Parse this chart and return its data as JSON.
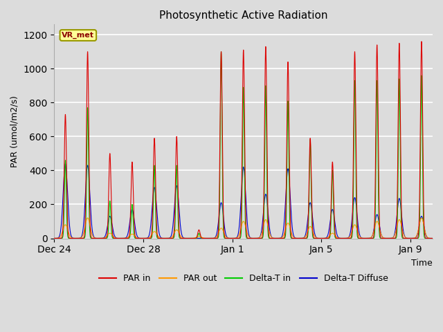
{
  "title": "Photosynthetic Active Radiation",
  "ylabel": "PAR (umol/m2/s)",
  "xlabel": "Time",
  "ylim": [
    0,
    1260
  ],
  "yticks": [
    0,
    200,
    400,
    600,
    800,
    1000,
    1200
  ],
  "bg_color": "#dcdcdc",
  "grid_color": "#f0f0f0",
  "legend_labels": [
    "PAR in",
    "PAR out",
    "Delta-T in",
    "Delta-T Diffuse"
  ],
  "legend_colors": [
    "#dd0000",
    "#ff9900",
    "#00cc00",
    "#0000cc"
  ],
  "annotation_text": "VR_met",
  "annotation_fg": "#8b0000",
  "annotation_bg": "#ffff99",
  "annotation_edge": "#999900",
  "tick_labels": [
    "Dec 24",
    "Dec 28",
    "Jan 1",
    "Jan 5",
    "Jan 9"
  ],
  "tick_positions": [
    0,
    4,
    8,
    12,
    16
  ],
  "n_days": 17,
  "par_in_peaks": [
    730,
    1100,
    500,
    450,
    590,
    600,
    50,
    1100,
    1110,
    1130,
    1040,
    590,
    450,
    1100,
    1140,
    1150,
    1160
  ],
  "par_out_peaks": [
    80,
    120,
    30,
    25,
    40,
    50,
    10,
    60,
    100,
    110,
    90,
    70,
    30,
    80,
    100,
    110,
    120
  ],
  "delta_t_peaks": [
    460,
    770,
    220,
    200,
    430,
    430,
    30,
    1100,
    890,
    900,
    810,
    580,
    400,
    930,
    930,
    940,
    960
  ],
  "delta_d_peaks": [
    440,
    430,
    130,
    170,
    300,
    310,
    0,
    210,
    420,
    260,
    410,
    210,
    170,
    240,
    140,
    235,
    130
  ]
}
